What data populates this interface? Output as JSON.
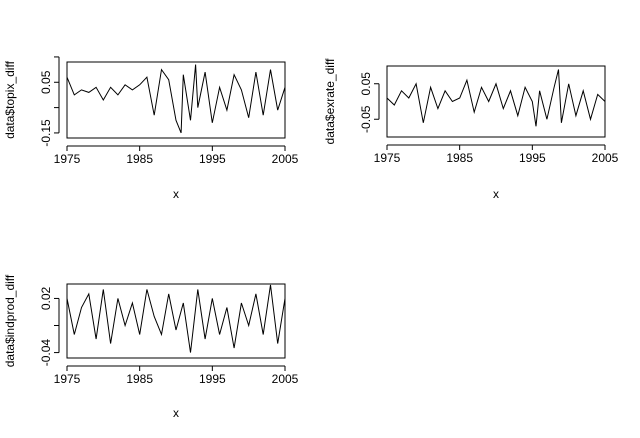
{
  "chart_data": [
    {
      "type": "line",
      "xlabel": "x",
      "ylabel": "data$topix_diff",
      "xlim": [
        1975,
        2005
      ],
      "x_ticks": [
        "1975",
        "1985",
        "1995",
        "2005"
      ],
      "ylim": [
        -0.17,
        0.13
      ],
      "y_ticks": [
        "-0.15",
        "",
        "0.05",
        ""
      ],
      "y_tick_values": [
        -0.15,
        -0.05,
        0.05,
        0.15
      ],
      "series": [
        {
          "x": [
            1975.0,
            1976.0,
            1977.0,
            1978.0,
            1979.0,
            1980.0,
            1981.0,
            1982.0,
            1983.0,
            1984.0,
            1985.0,
            1986.0,
            1987.0,
            1988.0,
            1989.0,
            1990.0,
            1990.7,
            1991.0,
            1992.0,
            1992.7,
            1993.0,
            1994.0,
            1995.0,
            1996.0,
            1997.0,
            1998.0,
            1999.0,
            2000.0,
            2001.0,
            2002.0,
            2003.0,
            2004.0,
            2005.0
          ],
          "y": [
            0.07,
            0.0,
            0.02,
            0.01,
            0.03,
            -0.02,
            0.03,
            0.0,
            0.04,
            0.02,
            0.04,
            0.07,
            -0.08,
            0.1,
            0.06,
            -0.1,
            -0.15,
            0.08,
            -0.1,
            0.12,
            -0.05,
            0.09,
            -0.11,
            0.03,
            -0.06,
            0.08,
            0.02,
            -0.09,
            0.09,
            -0.08,
            0.1,
            -0.06,
            0.03
          ]
        }
      ]
    },
    {
      "type": "line",
      "xlabel": "x",
      "ylabel": "data$exrate_diff",
      "xlim": [
        1975,
        2005
      ],
      "x_ticks": [
        "1975",
        "1985",
        "1995",
        "2005"
      ],
      "ylim": [
        -0.1,
        0.1
      ],
      "y_ticks": [
        "-0.05",
        "0.05"
      ],
      "y_tick_values": [
        -0.05,
        0.05
      ],
      "series": [
        {
          "x": [
            1975.0,
            1976.0,
            1977.0,
            1978.0,
            1979.0,
            1980.0,
            1981.0,
            1982.0,
            1983.0,
            1984.0,
            1985.0,
            1986.0,
            1987.0,
            1988.0,
            1989.0,
            1990.0,
            1991.0,
            1992.0,
            1993.0,
            1994.0,
            1995.0,
            1995.5,
            1996.0,
            1997.0,
            1998.0,
            1998.6,
            1999.0,
            2000.0,
            2001.0,
            2002.0,
            2003.0,
            2004.0,
            2005.0
          ],
          "y": [
            0.01,
            -0.01,
            0.03,
            0.01,
            0.05,
            -0.06,
            0.04,
            -0.02,
            0.03,
            0.0,
            0.01,
            0.06,
            -0.03,
            0.04,
            0.0,
            0.05,
            -0.02,
            0.03,
            -0.04,
            0.04,
            0.0,
            -0.07,
            0.03,
            -0.05,
            0.04,
            0.09,
            -0.06,
            0.05,
            -0.04,
            0.03,
            -0.05,
            0.02,
            0.0
          ]
        }
      ]
    },
    {
      "type": "line",
      "xlabel": "x",
      "ylabel": "data$indprod_diff",
      "xlim": [
        1975,
        2005
      ],
      "x_ticks": [
        "1975",
        "1985",
        "1995",
        "2005"
      ],
      "ylim": [
        -0.046,
        0.036
      ],
      "y_ticks": [
        "-0.04",
        "",
        "0.02",
        ""
      ],
      "y_tick_values": [
        -0.04,
        -0.01,
        0.02,
        0.05
      ],
      "series": [
        {
          "x": [
            1975.0,
            1976.0,
            1977.0,
            1978.0,
            1979.0,
            1980.0,
            1981.0,
            1982.0,
            1983.0,
            1984.0,
            1985.0,
            1986.0,
            1987.0,
            1988.0,
            1989.0,
            1990.0,
            1991.0,
            1992.0,
            1993.0,
            1994.0,
            1995.0,
            1996.0,
            1997.0,
            1998.0,
            1999.0,
            2000.0,
            2001.0,
            2002.0,
            2003.0,
            2004.0,
            2005.0
          ],
          "y": [
            0.02,
            -0.02,
            0.01,
            0.025,
            -0.025,
            0.03,
            -0.03,
            0.02,
            -0.01,
            0.015,
            -0.02,
            0.03,
            0.0,
            -0.02,
            0.025,
            -0.015,
            0.015,
            -0.04,
            0.03,
            -0.025,
            0.02,
            -0.02,
            0.01,
            -0.035,
            0.015,
            -0.01,
            0.025,
            -0.02,
            0.035,
            -0.03,
            0.02
          ]
        }
      ]
    }
  ]
}
